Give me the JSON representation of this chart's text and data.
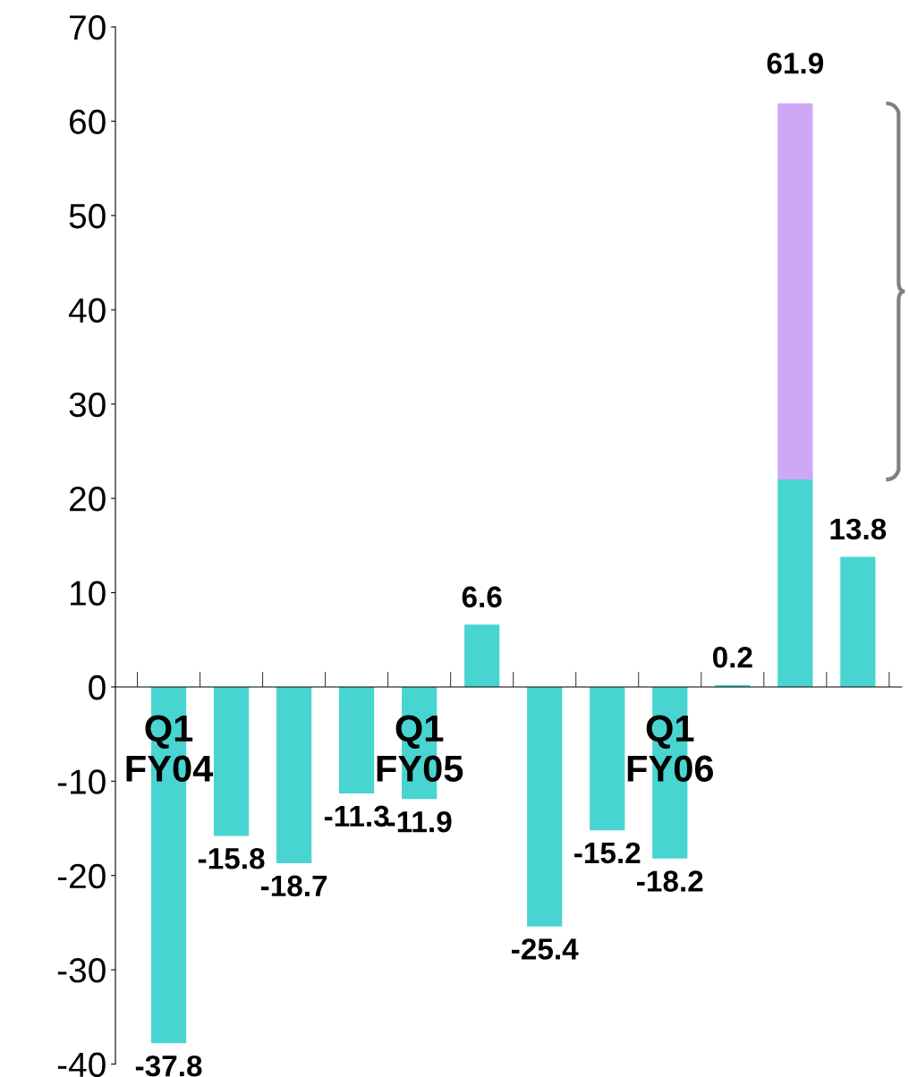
{
  "chart_data": {
    "type": "bar",
    "stacked": true,
    "categories": [
      "Q1\nFY04",
      null,
      null,
      null,
      "Q1\nFY05",
      null,
      null,
      null,
      "Q1\nFY06",
      null,
      null,
      null
    ],
    "series": [
      {
        "color": "#48d4d0",
        "values": [
          -37.8,
          -15.8,
          -18.7,
          -11.3,
          -11.9,
          6.6,
          -25.4,
          -15.2,
          -18.2,
          0.2,
          22,
          13.8
        ],
        "value_labels": [
          "-37.8",
          "-15.8",
          "-18.7",
          "-11.3",
          "-11.9",
          "6.6",
          "-25.4",
          "-15.2",
          "-18.2",
          "0.2",
          null,
          "13.8"
        ]
      },
      {
        "color": "#cda8f5",
        "values": [
          null,
          null,
          null,
          null,
          null,
          null,
          null,
          null,
          null,
          null,
          39.9,
          null
        ]
      }
    ],
    "totals": [
      null,
      null,
      null,
      null,
      null,
      null,
      null,
      null,
      null,
      null,
      "61.9",
      null
    ],
    "ylim": [
      -40,
      70
    ],
    "yticks": [
      -40,
      -30,
      -20,
      -10,
      0,
      10,
      20,
      30,
      40,
      50,
      60,
      70
    ],
    "grid": false,
    "legend": false
  }
}
